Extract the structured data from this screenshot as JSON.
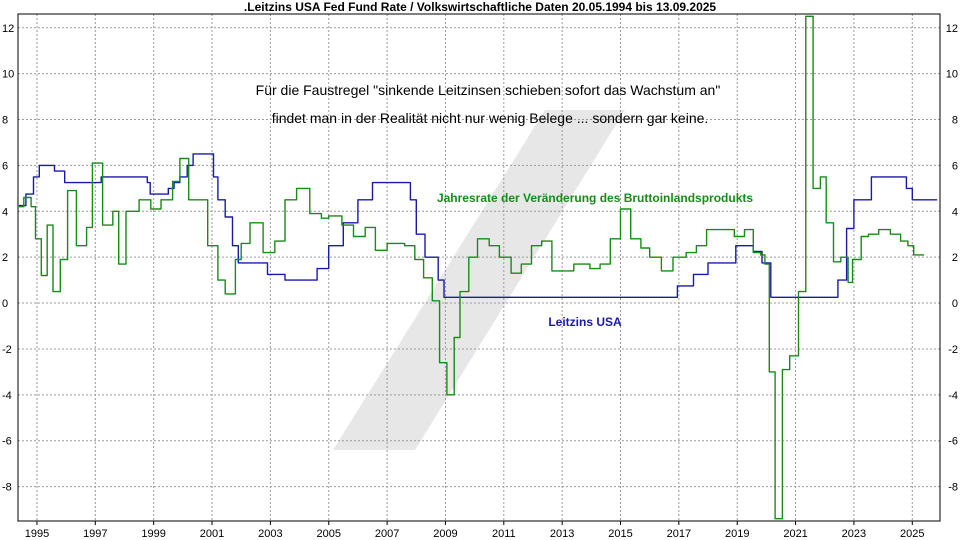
{
  "chart_data": {
    "type": "line",
    "title": ".Leitzins USA Fed Fund Rate / Volkswirtschaftliche Daten 20.05.1994 bis 13.09.2025",
    "xlabel": "",
    "ylabel": "",
    "xlim": [
      1994.35,
      2025.95
    ],
    "ylim": [
      -9.5,
      12.6
    ],
    "grid": true,
    "y_ticks": [
      -8,
      -6,
      -4,
      -2,
      0,
      2,
      4,
      6,
      8,
      10,
      12
    ],
    "x_ticks": [
      1995,
      1997,
      1999,
      2001,
      2003,
      2005,
      2007,
      2009,
      2011,
      2013,
      2015,
      2017,
      2019,
      2021,
      2023,
      2025
    ],
    "annotations": [
      "Für die Faustregel \"sinkende Leitzinsen schieben sofort das Wachstum an\"",
      "findet man in der Realität nicht nur wenig Belege ... sondern gar keine."
    ],
    "series": [
      {
        "name": "Leitzins USA",
        "color": "#1a1aa8",
        "points": [
          [
            1994.38,
            4.25
          ],
          [
            1994.62,
            4.75
          ],
          [
            1994.88,
            5.5
          ],
          [
            1995.08,
            6.0
          ],
          [
            1995.5,
            6.0
          ],
          [
            1995.6,
            5.75
          ],
          [
            1995.95,
            5.25
          ],
          [
            1997.2,
            5.5
          ],
          [
            1998.7,
            5.5
          ],
          [
            1998.78,
            5.25
          ],
          [
            1998.88,
            4.75
          ],
          [
            1999.5,
            5.0
          ],
          [
            1999.7,
            5.25
          ],
          [
            1999.9,
            5.5
          ],
          [
            2000.15,
            6.0
          ],
          [
            2000.35,
            6.5
          ],
          [
            2000.95,
            6.5
          ],
          [
            2001.05,
            5.5
          ],
          [
            2001.2,
            4.5
          ],
          [
            2001.45,
            3.75
          ],
          [
            2001.7,
            2.5
          ],
          [
            2001.9,
            1.75
          ],
          [
            2002.9,
            1.25
          ],
          [
            2003.5,
            1.0
          ],
          [
            2004.45,
            1.0
          ],
          [
            2004.6,
            1.5
          ],
          [
            2005.0,
            2.5
          ],
          [
            2005.5,
            3.5
          ],
          [
            2006.0,
            4.5
          ],
          [
            2006.5,
            5.25
          ],
          [
            2007.6,
            5.25
          ],
          [
            2007.8,
            4.5
          ],
          [
            2008.0,
            3.0
          ],
          [
            2008.3,
            2.0
          ],
          [
            2008.75,
            1.0
          ],
          [
            2008.95,
            0.25
          ],
          [
            2015.95,
            0.25
          ],
          [
            2016.95,
            0.75
          ],
          [
            2017.5,
            1.25
          ],
          [
            2018.0,
            1.75
          ],
          [
            2018.95,
            2.5
          ],
          [
            2019.55,
            2.25
          ],
          [
            2019.85,
            1.75
          ],
          [
            2020.15,
            0.25
          ],
          [
            2022.2,
            0.25
          ],
          [
            2022.45,
            1.0
          ],
          [
            2022.75,
            3.25
          ],
          [
            2023.0,
            4.5
          ],
          [
            2023.6,
            5.5
          ],
          [
            2024.7,
            5.5
          ],
          [
            2024.8,
            5.0
          ],
          [
            2025.0,
            4.5
          ],
          [
            2025.85,
            4.5
          ]
        ]
      },
      {
        "name": "Jahresrate der Veränderung des Bruttoinlandsprodukts",
        "color": "#1a8a1a",
        "points": [
          [
            1994.38,
            4.2
          ],
          [
            1994.55,
            4.6
          ],
          [
            1994.8,
            4.2
          ],
          [
            1994.95,
            2.8
          ],
          [
            1995.15,
            1.2
          ],
          [
            1995.35,
            3.4
          ],
          [
            1995.55,
            0.5
          ],
          [
            1995.8,
            1.9
          ],
          [
            1996.05,
            4.9
          ],
          [
            1996.35,
            2.5
          ],
          [
            1996.7,
            3.3
          ],
          [
            1996.9,
            6.1
          ],
          [
            1997.25,
            3.4
          ],
          [
            1997.6,
            4.0
          ],
          [
            1997.8,
            1.7
          ],
          [
            1998.05,
            4.0
          ],
          [
            1998.5,
            4.5
          ],
          [
            1998.9,
            4.1
          ],
          [
            1999.25,
            4.5
          ],
          [
            1999.65,
            5.3
          ],
          [
            1999.9,
            6.3
          ],
          [
            2000.2,
            4.5
          ],
          [
            2000.45,
            4.5
          ],
          [
            2000.85,
            2.5
          ],
          [
            2001.2,
            1.0
          ],
          [
            2001.45,
            0.4
          ],
          [
            2001.8,
            1.9
          ],
          [
            2002.0,
            2.6
          ],
          [
            2002.3,
            3.5
          ],
          [
            2002.75,
            2.2
          ],
          [
            2003.15,
            2.7
          ],
          [
            2003.5,
            4.5
          ],
          [
            2003.9,
            5.0
          ],
          [
            2004.35,
            3.9
          ],
          [
            2004.75,
            3.7
          ],
          [
            2005.0,
            3.8
          ],
          [
            2005.45,
            3.4
          ],
          [
            2005.85,
            2.9
          ],
          [
            2006.25,
            3.3
          ],
          [
            2006.6,
            2.3
          ],
          [
            2007.0,
            2.6
          ],
          [
            2007.6,
            2.5
          ],
          [
            2007.95,
            1.9
          ],
          [
            2008.25,
            1.1
          ],
          [
            2008.55,
            0.1
          ],
          [
            2008.8,
            -2.6
          ],
          [
            2009.05,
            -4.0
          ],
          [
            2009.3,
            -1.5
          ],
          [
            2009.5,
            0.5
          ],
          [
            2009.8,
            2.0
          ],
          [
            2010.1,
            2.8
          ],
          [
            2010.5,
            2.5
          ],
          [
            2010.85,
            2.0
          ],
          [
            2011.25,
            1.3
          ],
          [
            2011.6,
            1.7
          ],
          [
            2011.95,
            2.5
          ],
          [
            2012.3,
            2.7
          ],
          [
            2012.65,
            1.4
          ],
          [
            2013.0,
            1.4
          ],
          [
            2013.4,
            1.7
          ],
          [
            2013.95,
            1.5
          ],
          [
            2014.3,
            1.7
          ],
          [
            2014.65,
            2.8
          ],
          [
            2015.0,
            4.1
          ],
          [
            2015.35,
            2.8
          ],
          [
            2015.7,
            2.4
          ],
          [
            2016.0,
            2.0
          ],
          [
            2016.4,
            1.4
          ],
          [
            2016.8,
            2.0
          ],
          [
            2017.25,
            2.2
          ],
          [
            2017.6,
            2.5
          ],
          [
            2017.95,
            3.2
          ],
          [
            2018.5,
            3.2
          ],
          [
            2018.9,
            2.9
          ],
          [
            2019.25,
            3.2
          ],
          [
            2019.55,
            2.2
          ],
          [
            2019.8,
            2.1
          ],
          [
            2019.95,
            1.7
          ],
          [
            2020.1,
            -3.0
          ],
          [
            2020.3,
            -9.4
          ],
          [
            2020.55,
            -2.9
          ],
          [
            2020.8,
            -2.3
          ],
          [
            2021.1,
            0.5
          ],
          [
            2021.35,
            12.5
          ],
          [
            2021.6,
            5.0
          ],
          [
            2021.85,
            5.5
          ],
          [
            2022.05,
            3.5
          ],
          [
            2022.3,
            1.8
          ],
          [
            2022.55,
            2.0
          ],
          [
            2022.8,
            0.9
          ],
          [
            2022.95,
            1.9
          ],
          [
            2023.25,
            2.9
          ],
          [
            2023.5,
            3.0
          ],
          [
            2023.85,
            3.2
          ],
          [
            2024.25,
            3.0
          ],
          [
            2024.6,
            2.7
          ],
          [
            2024.85,
            2.5
          ],
          [
            2025.05,
            2.1
          ],
          [
            2025.4,
            2.1
          ]
        ]
      }
    ]
  }
}
